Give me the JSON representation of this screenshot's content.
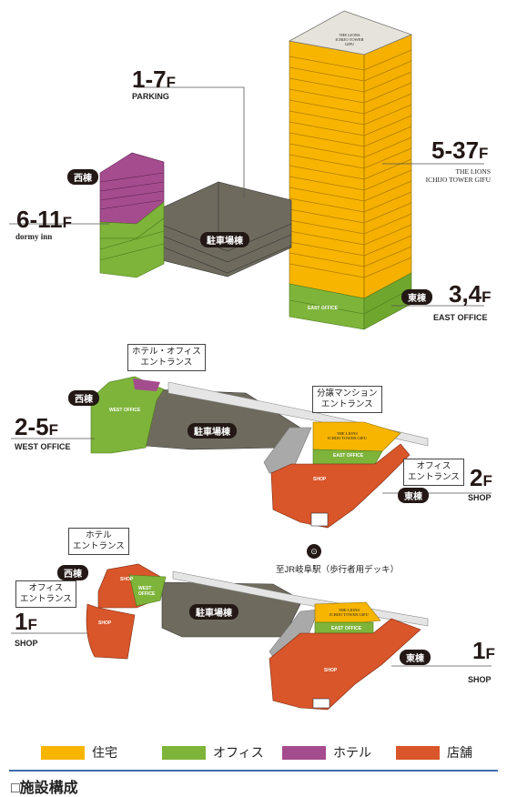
{
  "labels": {
    "f1_7": "1-7",
    "parking": "PARKING",
    "f5_37": "5-37",
    "lions_1": "THE LIONS",
    "lions_2": "ICHIJO TOWER GIFU",
    "f6_11": "6-11",
    "dormy": "dormy inn",
    "f3_4": "3,4",
    "east_office": "EAST OFFICE",
    "f2_5": "2-5",
    "west_office": "WEST OFFICE",
    "f2": "2",
    "shop_2f": "SHOP",
    "f1_left": "1",
    "shop_1f_left": "SHOP",
    "f1_right": "1",
    "shop_1f_right": "SHOP",
    "F": "F"
  },
  "badges": {
    "west": "西棟",
    "east": "東棟",
    "parking": "駐車場棟"
  },
  "entrances": {
    "hotel_office": [
      "ホテル・オフィス",
      "エントランス"
    ],
    "mansion": [
      "分譲マンション",
      "エントランス"
    ],
    "office_2f": [
      "オフィス",
      "エントランス"
    ],
    "hotel_1f": [
      "ホテル",
      "エントランス"
    ],
    "office_1f": [
      "オフィス",
      "エントランス"
    ]
  },
  "inner": {
    "west_office": "WEST OFFICE",
    "east_office": "EAST OFFICE",
    "shop": "SHOP",
    "lions_1": "THE LIONS",
    "lions_2": "ICHIJO TOWER GIFU",
    "west_office_1f": "WEST OFFICE"
  },
  "station": "至JR岐阜駅（歩行者用デッキ）",
  "legend": [
    {
      "label": "住宅",
      "color": "#F7B500"
    },
    {
      "label": "オフィス",
      "color": "#7EB43A"
    },
    {
      "label": "ホテル",
      "color": "#A54C8E"
    },
    {
      "label": "店舗",
      "color": "#D9552A"
    }
  ],
  "section_title": "□施設構成",
  "colors": {
    "residential": "#F7B500",
    "office": "#7EB43A",
    "hotel": "#A54C8E",
    "shop": "#D9552A",
    "parking": "#6E6B5E",
    "gray": "#A9A9A9",
    "rule": "#3E6AB0"
  }
}
